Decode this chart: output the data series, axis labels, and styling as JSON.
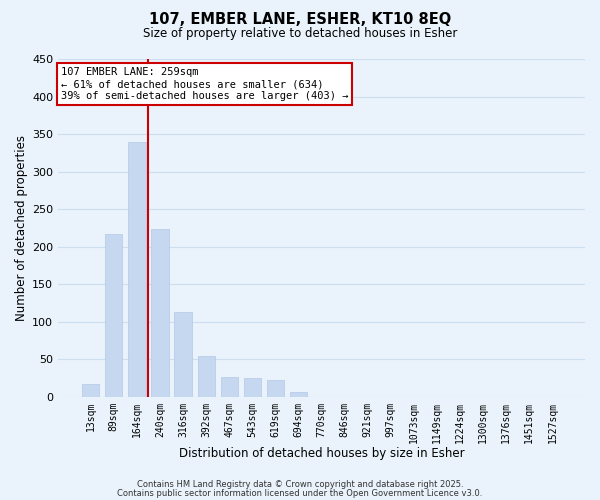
{
  "title": "107, EMBER LANE, ESHER, KT10 8EQ",
  "subtitle": "Size of property relative to detached houses in Esher",
  "xlabel": "Distribution of detached houses by size in Esher",
  "ylabel": "Number of detached properties",
  "bar_labels": [
    "13sqm",
    "89sqm",
    "164sqm",
    "240sqm",
    "316sqm",
    "392sqm",
    "467sqm",
    "543sqm",
    "619sqm",
    "694sqm",
    "770sqm",
    "846sqm",
    "921sqm",
    "997sqm",
    "1073sqm",
    "1149sqm",
    "1224sqm",
    "1300sqm",
    "1376sqm",
    "1451sqm",
    "1527sqm"
  ],
  "bar_values": [
    17,
    217,
    340,
    224,
    113,
    55,
    27,
    25,
    22,
    7,
    0,
    0,
    0,
    0,
    0,
    0,
    0,
    0,
    0,
    0,
    0
  ],
  "bar_color": "#c5d8ef",
  "bar_edge_color": "#b8cceb",
  "grid_color": "#ccdff0",
  "bg_color": "#eaf3fb",
  "vline_x": 2.5,
  "vline_color": "#cc0000",
  "annotation_title": "107 EMBER LANE: 259sqm",
  "annotation_line1": "← 61% of detached houses are smaller (634)",
  "annotation_line2": "39% of semi-detached houses are larger (403) →",
  "annotation_box_facecolor": "white",
  "annotation_box_edgecolor": "#cc0000",
  "ylim": [
    0,
    450
  ],
  "yticks": [
    0,
    50,
    100,
    150,
    200,
    250,
    300,
    350,
    400,
    450
  ],
  "footer1": "Contains HM Land Registry data © Crown copyright and database right 2025.",
  "footer2": "Contains public sector information licensed under the Open Government Licence v3.0."
}
